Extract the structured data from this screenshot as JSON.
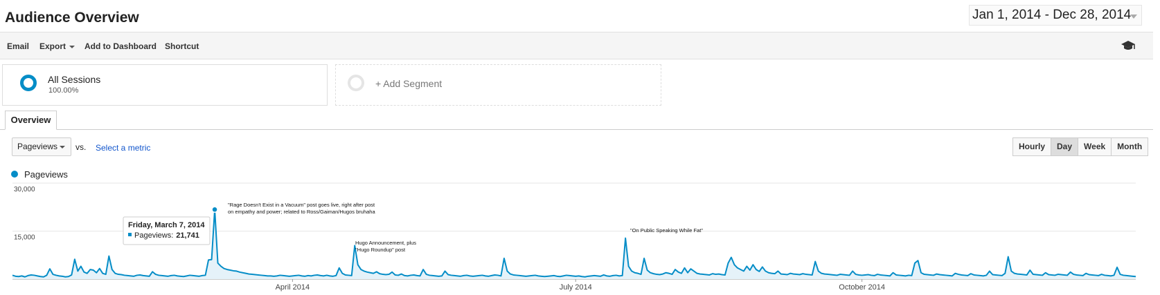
{
  "header": {
    "title": "Audience Overview",
    "date_range": "Jan 1, 2014 - Dec 28, 2014"
  },
  "toolbar": [
    "Email",
    "Export",
    "Add to Dashboard",
    "Shortcut"
  ],
  "segments": {
    "active": {
      "name": "All Sessions",
      "percent": "100.00%"
    },
    "add": "+ Add Segment"
  },
  "tab": "Overview",
  "controls": {
    "metric": "Pageviews",
    "vs": "vs.",
    "select_metric": "Select a metric",
    "intervals": [
      "Hourly",
      "Day",
      "Week",
      "Month"
    ],
    "selected_interval": "Day"
  },
  "chart_data": {
    "type": "line",
    "ylim": [
      0,
      30000
    ],
    "yticks": [
      {
        "value": 15000,
        "label": "15,000"
      },
      {
        "value": 30000,
        "label": "30,000"
      }
    ],
    "xlim": [
      "2014-01-01",
      "2014-12-28"
    ],
    "xticks": [
      {
        "value": "2014-04-01",
        "label": "April 2014"
      },
      {
        "value": "2014-07-01",
        "label": "July 2014"
      },
      {
        "value": "2014-10-01",
        "label": "October 2014"
      }
    ],
    "grid": true,
    "area": true,
    "x": [
      "2014-01-01",
      "2014-01-02",
      "2014-01-03",
      "2014-01-04",
      "2014-01-05",
      "2014-01-06",
      "2014-01-07",
      "2014-01-08",
      "2014-01-09",
      "2014-01-10",
      "2014-01-11",
      "2014-01-12",
      "2014-01-13",
      "2014-01-14",
      "2014-01-15",
      "2014-01-16",
      "2014-01-17",
      "2014-01-18",
      "2014-01-19",
      "2014-01-20",
      "2014-01-21",
      "2014-01-22",
      "2014-01-23",
      "2014-01-24",
      "2014-01-25",
      "2014-01-26",
      "2014-01-27",
      "2014-01-28",
      "2014-01-29",
      "2014-01-30",
      "2014-01-31",
      "2014-02-01",
      "2014-02-02",
      "2014-02-03",
      "2014-02-04",
      "2014-02-05",
      "2014-02-06",
      "2014-02-07",
      "2014-02-08",
      "2014-02-09",
      "2014-02-10",
      "2014-02-11",
      "2014-02-12",
      "2014-02-13",
      "2014-02-14",
      "2014-02-15",
      "2014-02-16",
      "2014-02-17",
      "2014-02-18",
      "2014-02-19",
      "2014-02-20",
      "2014-02-21",
      "2014-02-22",
      "2014-02-23",
      "2014-02-24",
      "2014-02-25",
      "2014-02-26",
      "2014-02-27",
      "2014-02-28",
      "2014-03-01",
      "2014-03-02",
      "2014-03-03",
      "2014-03-04",
      "2014-03-05",
      "2014-03-06",
      "2014-03-07",
      "2014-03-08",
      "2014-03-09",
      "2014-03-10",
      "2014-03-11",
      "2014-03-12",
      "2014-03-13",
      "2014-03-14",
      "2014-03-15",
      "2014-03-16",
      "2014-03-17",
      "2014-03-18",
      "2014-03-19",
      "2014-03-20",
      "2014-03-21",
      "2014-03-22",
      "2014-03-23",
      "2014-03-24",
      "2014-03-25",
      "2014-03-26",
      "2014-03-27",
      "2014-03-28",
      "2014-03-29",
      "2014-03-30",
      "2014-03-31",
      "2014-04-01",
      "2014-04-02",
      "2014-04-03",
      "2014-04-04",
      "2014-04-05",
      "2014-04-06",
      "2014-04-07",
      "2014-04-08",
      "2014-04-09",
      "2014-04-10",
      "2014-04-11",
      "2014-04-12",
      "2014-04-13",
      "2014-04-14",
      "2014-04-15",
      "2014-04-16",
      "2014-04-17",
      "2014-04-18",
      "2014-04-19",
      "2014-04-20",
      "2014-04-21",
      "2014-04-22",
      "2014-04-23",
      "2014-04-24",
      "2014-04-25",
      "2014-04-26",
      "2014-04-27",
      "2014-04-28",
      "2014-04-29",
      "2014-04-30",
      "2014-05-01",
      "2014-05-02",
      "2014-05-03",
      "2014-05-04",
      "2014-05-05",
      "2014-05-06",
      "2014-05-07",
      "2014-05-08",
      "2014-05-09",
      "2014-05-10",
      "2014-05-11",
      "2014-05-12",
      "2014-05-13",
      "2014-05-14",
      "2014-05-15",
      "2014-05-16",
      "2014-05-17",
      "2014-05-18",
      "2014-05-19",
      "2014-05-20",
      "2014-05-21",
      "2014-05-22",
      "2014-05-23",
      "2014-05-24",
      "2014-05-25",
      "2014-05-26",
      "2014-05-27",
      "2014-05-28",
      "2014-05-29",
      "2014-05-30",
      "2014-05-31",
      "2014-06-01",
      "2014-06-02",
      "2014-06-03",
      "2014-06-04",
      "2014-06-05",
      "2014-06-06",
      "2014-06-07",
      "2014-06-08",
      "2014-06-09",
      "2014-06-10",
      "2014-06-11",
      "2014-06-12",
      "2014-06-13",
      "2014-06-14",
      "2014-06-15",
      "2014-06-16",
      "2014-06-17",
      "2014-06-18",
      "2014-06-19",
      "2014-06-20",
      "2014-06-21",
      "2014-06-22",
      "2014-06-23",
      "2014-06-24",
      "2014-06-25",
      "2014-06-26",
      "2014-06-27",
      "2014-06-28",
      "2014-06-29",
      "2014-06-30",
      "2014-07-01",
      "2014-07-02",
      "2014-07-03",
      "2014-07-04",
      "2014-07-05",
      "2014-07-06",
      "2014-07-07",
      "2014-07-08",
      "2014-07-09",
      "2014-07-10",
      "2014-07-11",
      "2014-07-12",
      "2014-07-13",
      "2014-07-14",
      "2014-07-15",
      "2014-07-16",
      "2014-07-17",
      "2014-07-18",
      "2014-07-19",
      "2014-07-20",
      "2014-07-21",
      "2014-07-22",
      "2014-07-23",
      "2014-07-24",
      "2014-07-25",
      "2014-07-26",
      "2014-07-27",
      "2014-07-28",
      "2014-07-29",
      "2014-07-30",
      "2014-07-31",
      "2014-08-01",
      "2014-08-02",
      "2014-08-03",
      "2014-08-04",
      "2014-08-05",
      "2014-08-06",
      "2014-08-07",
      "2014-08-08",
      "2014-08-09",
      "2014-08-10",
      "2014-08-11",
      "2014-08-12",
      "2014-08-13",
      "2014-08-14",
      "2014-08-15",
      "2014-08-16",
      "2014-08-17",
      "2014-08-18",
      "2014-08-19",
      "2014-08-20",
      "2014-08-21",
      "2014-08-22",
      "2014-08-23",
      "2014-08-24",
      "2014-08-25",
      "2014-08-26",
      "2014-08-27",
      "2014-08-28",
      "2014-08-29",
      "2014-08-30",
      "2014-08-31",
      "2014-09-01",
      "2014-09-02",
      "2014-09-03",
      "2014-09-04",
      "2014-09-05",
      "2014-09-06",
      "2014-09-07",
      "2014-09-08",
      "2014-09-09",
      "2014-09-10",
      "2014-09-11",
      "2014-09-12",
      "2014-09-13",
      "2014-09-14",
      "2014-09-15",
      "2014-09-16",
      "2014-09-17",
      "2014-09-18",
      "2014-09-19",
      "2014-09-20",
      "2014-09-21",
      "2014-09-22",
      "2014-09-23",
      "2014-09-24",
      "2014-09-25",
      "2014-09-26",
      "2014-09-27",
      "2014-09-28",
      "2014-09-29",
      "2014-09-30",
      "2014-10-01",
      "2014-10-02",
      "2014-10-03",
      "2014-10-04",
      "2014-10-05",
      "2014-10-06",
      "2014-10-07",
      "2014-10-08",
      "2014-10-09",
      "2014-10-10",
      "2014-10-11",
      "2014-10-12",
      "2014-10-13",
      "2014-10-14",
      "2014-10-15",
      "2014-10-16",
      "2014-10-17",
      "2014-10-18",
      "2014-10-19",
      "2014-10-20",
      "2014-10-21",
      "2014-10-22",
      "2014-10-23",
      "2014-10-24",
      "2014-10-25",
      "2014-10-26",
      "2014-10-27",
      "2014-10-28",
      "2014-10-29",
      "2014-10-30",
      "2014-10-31",
      "2014-11-01",
      "2014-11-02",
      "2014-11-03",
      "2014-11-04",
      "2014-11-05",
      "2014-11-06",
      "2014-11-07",
      "2014-11-08",
      "2014-11-09",
      "2014-11-10",
      "2014-11-11",
      "2014-11-12",
      "2014-11-13",
      "2014-11-14",
      "2014-11-15",
      "2014-11-16",
      "2014-11-17",
      "2014-11-18",
      "2014-11-19",
      "2014-11-20",
      "2014-11-21",
      "2014-11-22",
      "2014-11-23",
      "2014-11-24",
      "2014-11-25",
      "2014-11-26",
      "2014-11-27",
      "2014-11-28",
      "2014-11-29",
      "2014-11-30",
      "2014-12-01",
      "2014-12-02",
      "2014-12-03",
      "2014-12-04",
      "2014-12-05",
      "2014-12-06",
      "2014-12-07",
      "2014-12-08",
      "2014-12-09",
      "2014-12-10",
      "2014-12-11",
      "2014-12-12",
      "2014-12-13",
      "2014-12-14",
      "2014-12-15",
      "2014-12-16",
      "2014-12-17",
      "2014-12-18",
      "2014-12-19",
      "2014-12-20",
      "2014-12-21",
      "2014-12-22",
      "2014-12-23",
      "2014-12-24",
      "2014-12-25",
      "2014-12-26",
      "2014-12-27",
      "2014-12-28"
    ],
    "series": [
      {
        "name": "Pageviews",
        "color": "#058dc7",
        "fill": "#e5f2f9",
        "values": [
          1200,
          900,
          800,
          1000,
          700,
          1100,
          1300,
          1200,
          1000,
          800,
          700,
          1200,
          3200,
          1500,
          1200,
          1000,
          900,
          700,
          800,
          1300,
          6200,
          2500,
          4000,
          2200,
          1800,
          3000,
          2800,
          2000,
          3300,
          1800,
          1500,
          7200,
          3000,
          1800,
          1500,
          1400,
          1200,
          1100,
          1000,
          900,
          1200,
          1300,
          1100,
          1000,
          900,
          2300,
          1500,
          1200,
          1100,
          1000,
          900,
          1100,
          1200,
          1000,
          900,
          800,
          1000,
          1200,
          1100,
          1000,
          900,
          1100,
          1200,
          6000,
          6100,
          21741,
          5000,
          4000,
          3300,
          3000,
          2800,
          2600,
          2500,
          2200,
          2000,
          1800,
          1600,
          1500,
          1400,
          1300,
          1200,
          1100,
          1000,
          1000,
          900,
          1000,
          1200,
          1100,
          1000,
          900,
          1000,
          1100,
          1200,
          1000,
          900,
          1100,
          1000,
          1200,
          1300,
          1100,
          1000,
          1200,
          1000,
          900,
          1100,
          3500,
          1800,
          1300,
          1200,
          1100,
          10500,
          4500,
          3000,
          2500,
          2200,
          2000,
          1800,
          2300,
          1700,
          1500,
          1400,
          1500,
          2200,
          1300,
          1200,
          1600,
          1100,
          1000,
          1200,
          1300,
          1100,
          1000,
          3000,
          1500,
          1200,
          1100,
          1000,
          900,
          1000,
          2500,
          1400,
          1200,
          1100,
          1000,
          900,
          1100,
          1200,
          1000,
          900,
          1000,
          1100,
          1200,
          1000,
          900,
          1100,
          1300,
          1200,
          1000,
          6500,
          2500,
          1600,
          1300,
          1200,
          1100,
          1000,
          900,
          1000,
          1100,
          1200,
          1000,
          900,
          800,
          900,
          1000,
          1100,
          900,
          800,
          1000,
          1200,
          1100,
          1000,
          900,
          1000,
          800,
          700,
          900,
          1000,
          1100,
          1000,
          900,
          1300,
          1000,
          900,
          1100,
          1200,
          1000,
          1100,
          12800,
          4000,
          2500,
          2000,
          1800,
          1500,
          6500,
          2800,
          2000,
          1700,
          1500,
          1400,
          1600,
          2000,
          1800,
          1500,
          3000,
          2200,
          1800,
          3500,
          2000,
          3200,
          2500,
          1800,
          1600,
          1500,
          1400,
          1300,
          1700,
          1500,
          1600,
          1400,
          1300,
          5000,
          6800,
          4500,
          3500,
          3000,
          2500,
          4000,
          2800,
          4500,
          3000,
          2400,
          3800,
          2500,
          2000,
          1800,
          1700,
          2500,
          1600,
          1500,
          1400,
          1800,
          1600,
          1500,
          1400,
          1700,
          1500,
          1400,
          1300,
          5500,
          2500,
          1800,
          1600,
          1500,
          1400,
          1300,
          1200,
          1500,
          1400,
          1300,
          1200,
          2500,
          1500,
          1300,
          1200,
          1300,
          1400,
          1200,
          1100,
          1500,
          1300,
          1200,
          1100,
          1000,
          2000,
          1300,
          1200,
          1100,
          1000,
          1200,
          1100,
          5000,
          5800,
          2000,
          1500,
          1400,
          1300,
          1200,
          1600,
          1400,
          1300,
          1200,
          1100,
          1000,
          1800,
          1500,
          1300,
          1200,
          1100,
          1700,
          1300,
          1200,
          1100,
          1000,
          1200,
          2500,
          1400,
          1300,
          1200,
          1100,
          1800,
          7000,
          2500,
          1800,
          1600,
          1500,
          1400,
          1300,
          2800,
          1500,
          1400,
          1300,
          1200,
          2000,
          1400,
          1300,
          1200,
          1500,
          1400,
          1300,
          1200,
          2200,
          1500,
          1300,
          1200,
          1100,
          1800,
          1400,
          1300,
          1200,
          1100,
          1500,
          1200,
          1100,
          1000,
          1200,
          3700,
          1500,
          1200,
          1100,
          1000,
          900,
          800
        ]
      }
    ],
    "annotations": [
      {
        "lines": [
          "\"Rage Doesn't Exist in a Vacuum\" post goes live, right after post",
          "on empathy and power; related to Ross/Gaiman/Hugos bruhaha"
        ]
      },
      {
        "lines": [
          "Hugo Announcement, plus",
          "\"Hugo Roundup\" post"
        ]
      },
      {
        "lines": [
          "\"On Public Speaking While Fat\""
        ]
      }
    ],
    "tooltip": {
      "date": "Friday, March 7, 2014",
      "label": "Pageviews:",
      "value_label": "21,741"
    }
  }
}
